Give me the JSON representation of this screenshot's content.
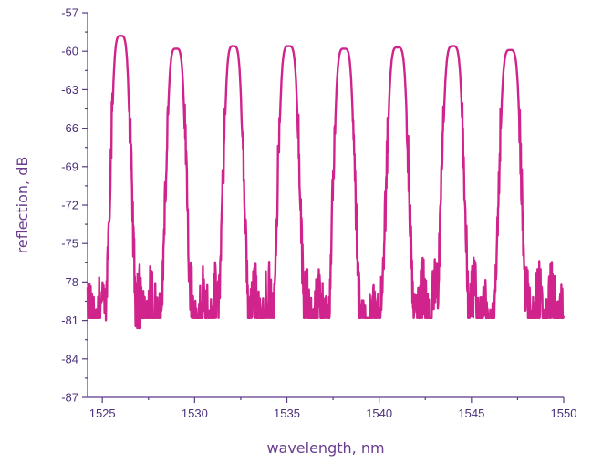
{
  "chart_data": {
    "type": "line",
    "title": "",
    "xlabel": "wavelength, nm",
    "ylabel": "reflection, dB",
    "xlim": [
      1524.2,
      1550
    ],
    "ylim": [
      -87,
      -57
    ],
    "x_ticks": [
      1525,
      1530,
      1535,
      1540,
      1545,
      1550
    ],
    "y_ticks": [
      -57,
      -60,
      -63,
      -66,
      -69,
      -72,
      -75,
      -78,
      -81,
      -84,
      -87
    ],
    "grid": false,
    "legend": "none",
    "line_color": "#d0248c",
    "series": [
      {
        "peaks": [
          {
            "center": 1526.0,
            "peak_db": -58.8,
            "half_width_nm": 0.45
          },
          {
            "center": 1529.0,
            "peak_db": -59.8,
            "half_width_nm": 0.45
          },
          {
            "center": 1532.1,
            "peak_db": -59.6,
            "half_width_nm": 0.45
          },
          {
            "center": 1535.1,
            "peak_db": -59.6,
            "half_width_nm": 0.48
          },
          {
            "center": 1538.1,
            "peak_db": -59.8,
            "half_width_nm": 0.48
          },
          {
            "center": 1541.0,
            "peak_db": -59.7,
            "half_width_nm": 0.5
          },
          {
            "center": 1544.0,
            "peak_db": -59.6,
            "half_width_nm": 0.5
          },
          {
            "center": 1547.1,
            "peak_db": -59.9,
            "half_width_nm": 0.5
          }
        ],
        "noise_floor_db": -81
      }
    ]
  }
}
